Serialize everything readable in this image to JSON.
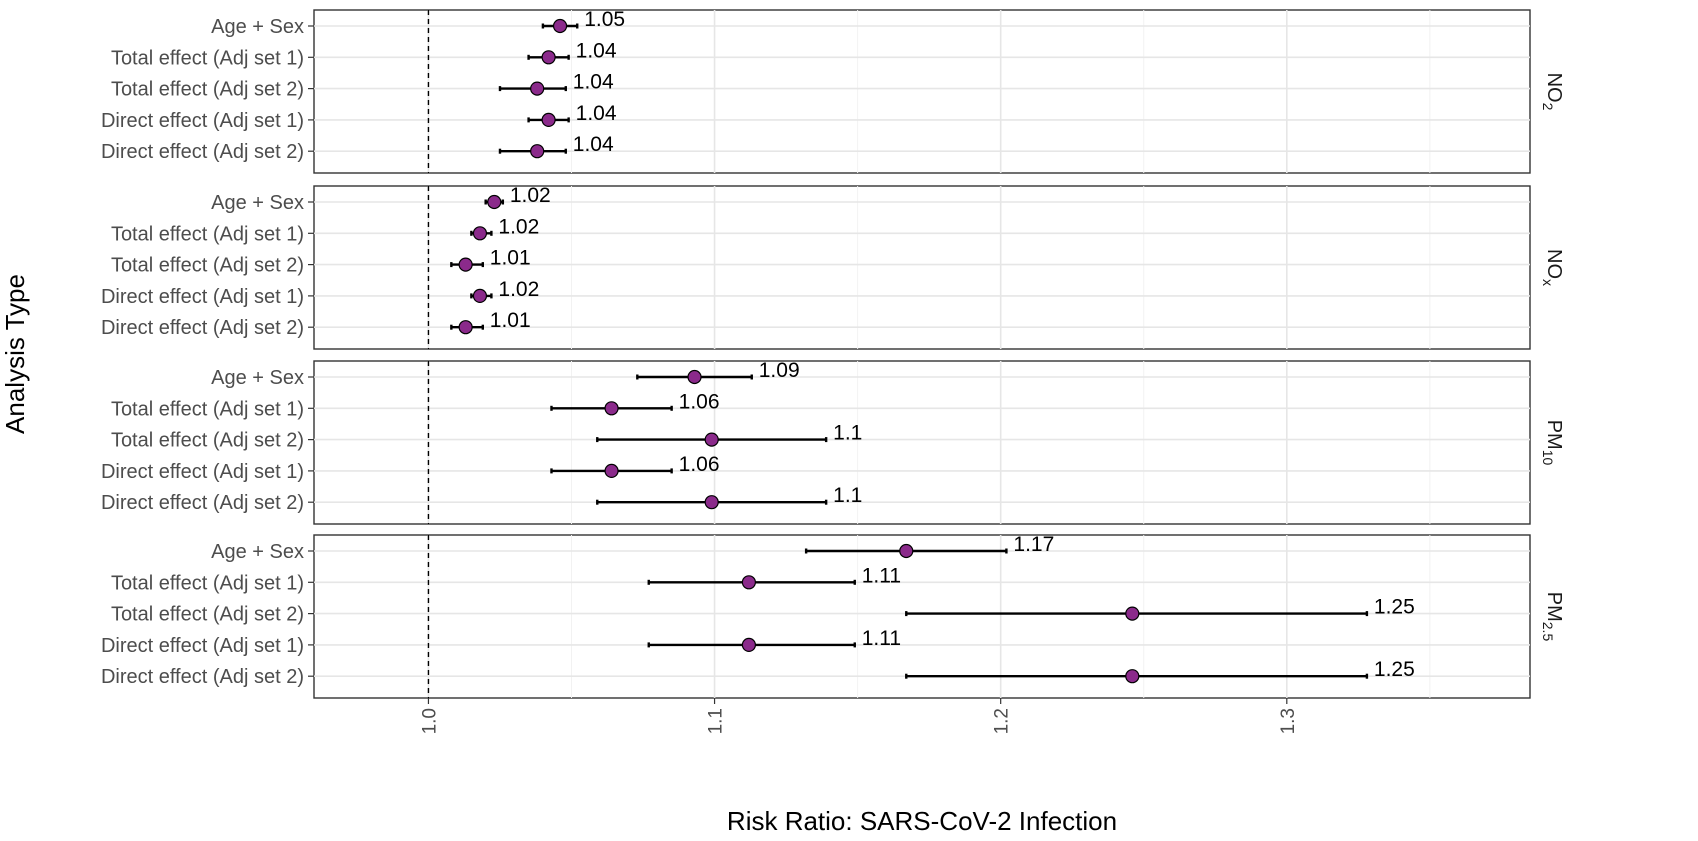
{
  "chart_data": {
    "type": "forest",
    "xlabel": "Risk Ratio: SARS-CoV-2 Infection",
    "ylabel": "Analysis Type",
    "xlim": [
      0.96,
      1.385
    ],
    "x_ticks": [
      1.0,
      1.1,
      1.2,
      1.3
    ],
    "x_tick_labels": [
      "1.0",
      "1.1",
      "1.2",
      "1.3"
    ],
    "reference_line": 1.0,
    "grid": true,
    "point_color": "#8B2A8B",
    "categories": [
      "Age + Sex",
      "Total effect (Adj set 1)",
      "Total effect (Adj set 2)",
      "Direct effect (Adj set 1)",
      "Direct effect (Adj set 2)"
    ],
    "facets": [
      {
        "label_main": "NO",
        "label_sub": "2",
        "rows": [
          {
            "estimate": 1.046,
            "lower": 1.04,
            "upper": 1.052,
            "label": "1.05"
          },
          {
            "estimate": 1.042,
            "lower": 1.035,
            "upper": 1.049,
            "label": "1.04"
          },
          {
            "estimate": 1.038,
            "lower": 1.025,
            "upper": 1.048,
            "label": "1.04"
          },
          {
            "estimate": 1.042,
            "lower": 1.035,
            "upper": 1.049,
            "label": "1.04"
          },
          {
            "estimate": 1.038,
            "lower": 1.025,
            "upper": 1.048,
            "label": "1.04"
          }
        ]
      },
      {
        "label_main": "NO",
        "label_sub": "x",
        "rows": [
          {
            "estimate": 1.023,
            "lower": 1.02,
            "upper": 1.026,
            "label": "1.02"
          },
          {
            "estimate": 1.018,
            "lower": 1.015,
            "upper": 1.022,
            "label": "1.02"
          },
          {
            "estimate": 1.013,
            "lower": 1.008,
            "upper": 1.019,
            "label": "1.01"
          },
          {
            "estimate": 1.018,
            "lower": 1.015,
            "upper": 1.022,
            "label": "1.02"
          },
          {
            "estimate": 1.013,
            "lower": 1.008,
            "upper": 1.019,
            "label": "1.01"
          }
        ]
      },
      {
        "label_main": "PM",
        "label_sub": "10",
        "rows": [
          {
            "estimate": 1.093,
            "lower": 1.073,
            "upper": 1.113,
            "label": "1.09"
          },
          {
            "estimate": 1.064,
            "lower": 1.043,
            "upper": 1.085,
            "label": "1.06"
          },
          {
            "estimate": 1.099,
            "lower": 1.059,
            "upper": 1.139,
            "label": "1.1"
          },
          {
            "estimate": 1.064,
            "lower": 1.043,
            "upper": 1.085,
            "label": "1.06"
          },
          {
            "estimate": 1.099,
            "lower": 1.059,
            "upper": 1.139,
            "label": "1.1"
          }
        ]
      },
      {
        "label_main": "PM",
        "label_sub": "2.5",
        "rows": [
          {
            "estimate": 1.167,
            "lower": 1.132,
            "upper": 1.202,
            "label": "1.17"
          },
          {
            "estimate": 1.112,
            "lower": 1.077,
            "upper": 1.149,
            "label": "1.11"
          },
          {
            "estimate": 1.246,
            "lower": 1.167,
            "upper": 1.328,
            "label": "1.25"
          },
          {
            "estimate": 1.112,
            "lower": 1.077,
            "upper": 1.149,
            "label": "1.11"
          },
          {
            "estimate": 1.246,
            "lower": 1.167,
            "upper": 1.328,
            "label": "1.25"
          }
        ]
      }
    ]
  }
}
